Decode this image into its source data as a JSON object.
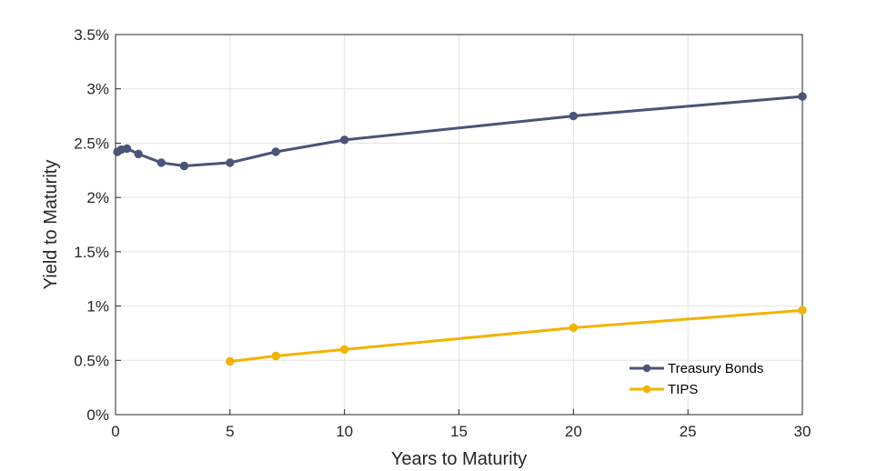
{
  "chart_data": {
    "type": "line",
    "xlabel": "Years to Maturity",
    "ylabel": "Yield to Maturity",
    "xlim": [
      0,
      30
    ],
    "ylim": [
      0,
      3.5
    ],
    "x_ticks": [
      0,
      5,
      10,
      15,
      20,
      25,
      30
    ],
    "x_tick_labels": [
      "0",
      "5",
      "10",
      "15",
      "20",
      "25",
      "30"
    ],
    "y_ticks": [
      0,
      0.5,
      1,
      1.5,
      2,
      2.5,
      3,
      3.5
    ],
    "y_tick_labels": [
      "0%",
      "0.5%",
      "1%",
      "1.5%",
      "2%",
      "2.5%",
      "3%",
      "3.5%"
    ],
    "grid": true,
    "legend_position": "bottom-right",
    "series": [
      {
        "name": "Treasury Bonds",
        "color": "#4a5478",
        "x": [
          0.083,
          0.25,
          0.5,
          1,
          2,
          3,
          5,
          7,
          10,
          20,
          30
        ],
        "y": [
          2.42,
          2.44,
          2.45,
          2.4,
          2.32,
          2.29,
          2.32,
          2.42,
          2.53,
          2.75,
          2.93
        ]
      },
      {
        "name": "TIPS",
        "color": "#f2b300",
        "x": [
          5,
          7,
          10,
          20,
          30
        ],
        "y": [
          0.49,
          0.54,
          0.6,
          0.8,
          0.96
        ]
      }
    ]
  }
}
